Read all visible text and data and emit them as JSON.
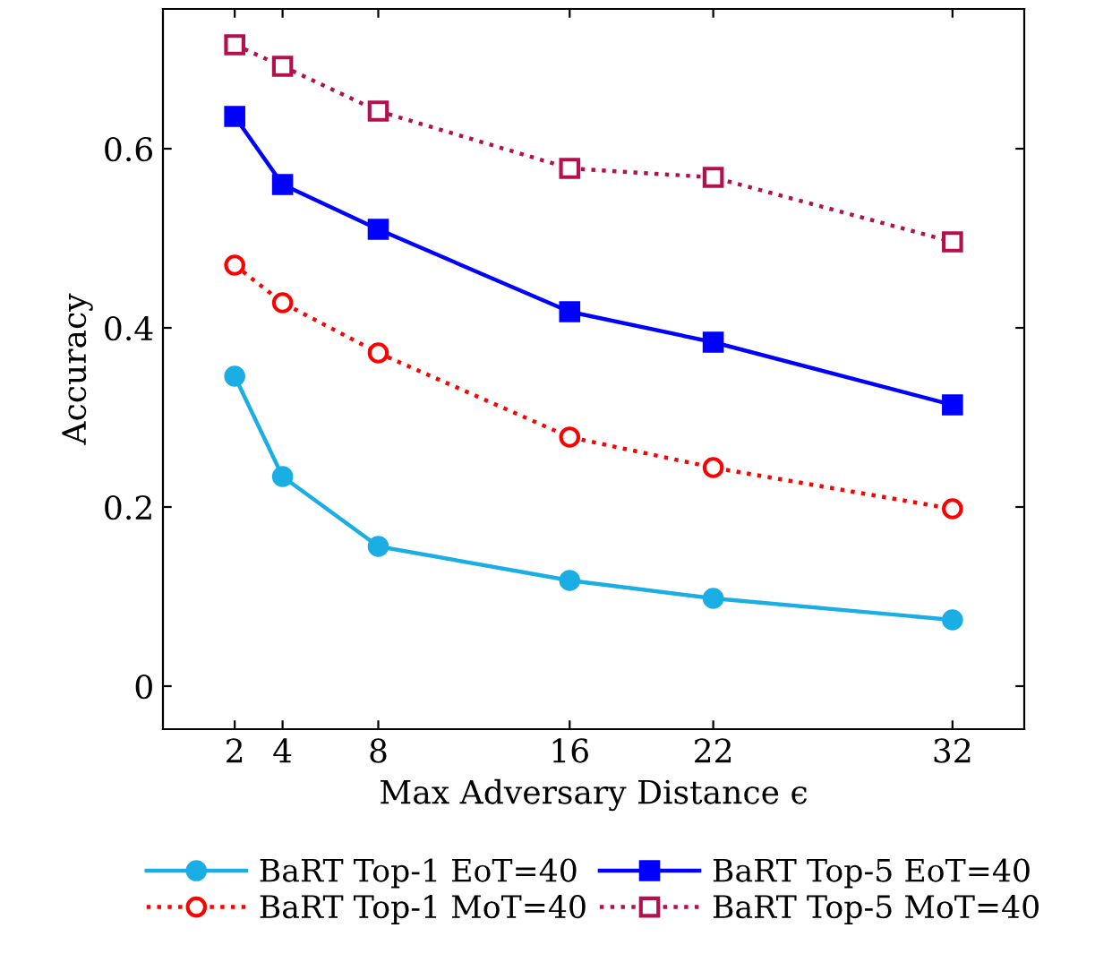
{
  "chart_data": {
    "type": "line",
    "xlabel": "Max Adversary Distance ϵ",
    "ylabel": "Accuracy",
    "x": [
      2,
      4,
      8,
      16,
      22,
      32
    ],
    "series": [
      {
        "name": "BaRT Top-1 EoT=40",
        "color": "#1aaee5",
        "marker": "circle",
        "line_style": "solid",
        "values": [
          0.346,
          0.234,
          0.156,
          0.118,
          0.098,
          0.074
        ]
      },
      {
        "name": "BaRT Top-5 EoT=40",
        "color": "#0000ff",
        "marker": "square",
        "line_style": "solid",
        "values": [
          0.636,
          0.56,
          0.51,
          0.418,
          0.384,
          0.314
        ]
      },
      {
        "name": "BaRT Top-1 MoT=40",
        "color": "#ff0000",
        "marker": "circle",
        "line_style": "dotted",
        "values": [
          0.47,
          0.428,
          0.372,
          0.278,
          0.244,
          0.198
        ]
      },
      {
        "name": "BaRT Top-5 MoT=40",
        "color": "#b3104f",
        "marker": "square",
        "line_style": "dotted",
        "values": [
          0.716,
          0.692,
          0.642,
          0.578,
          0.568,
          0.496
        ]
      }
    ],
    "xlim": [
      -1,
      35
    ],
    "xticks": [
      2,
      4,
      8,
      16,
      22,
      32
    ],
    "ylim": [
      -0.048,
      0.756
    ],
    "yticks": [
      0,
      0.2,
      0.4,
      0.6
    ],
    "grid": false,
    "legend": "bottom"
  }
}
